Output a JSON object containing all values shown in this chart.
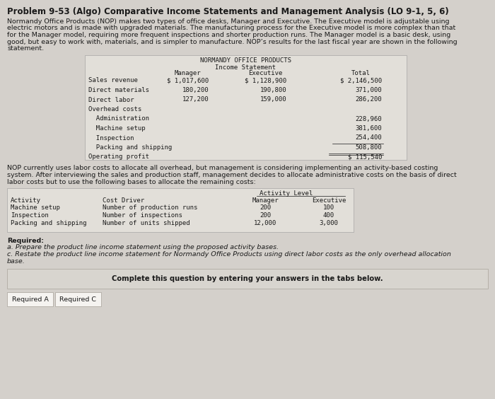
{
  "title": "Problem 9-53 (Algo) Comparative Income Statements and Management Analysis (LO 9-1, 5, 6)",
  "intro_lines": [
    "Normandy Office Products (NOP) makes two types of office desks, Manager and Executive. The Executive model is adjustable using",
    "electric motors and is made with upgraded materials. The manufacturing process for the Executive model is more complex than that",
    "for the Manager model, requiring more frequent inspections and shorter production runs. The Manager model is a basic desk, using",
    "good, but easy to work with, materials, and is simpler to manufacture. NOP’s results for the last fiscal year are shown in the following",
    "statement."
  ],
  "table1_title1": "NORMANDY OFFICE PRODUCTS",
  "table1_title2": "Income Statement",
  "table1_col_headers": [
    "Manager",
    "Executive",
    "Total"
  ],
  "table1_rows": [
    [
      "Sales revenue",
      "$ 1,017,600",
      "$ 1,128,900",
      "$ 2,146,500"
    ],
    [
      "Direct materials",
      "180,200",
      "190,800",
      "371,000"
    ],
    [
      "Direct labor",
      "127,200",
      "159,000",
      "286,200"
    ],
    [
      "Overhead costs",
      "",
      "",
      ""
    ],
    [
      "  Administration",
      "",
      "",
      "228,960"
    ],
    [
      "  Machine setup",
      "",
      "",
      "381,600"
    ],
    [
      "  Inspection",
      "",
      "",
      "254,400"
    ],
    [
      "  Packing and shipping",
      "",
      "",
      "508,800"
    ],
    [
      "Operating profit",
      "",
      "",
      "$ 115,540"
    ]
  ],
  "middle_lines": [
    "NOP currently uses labor costs to allocate all overhead, but management is considering implementing an activity-based costing",
    "system. After interviewing the sales and production staff, management decides to allocate administrative costs on the basis of direct",
    "labor costs but to use the following bases to allocate the remaining costs:"
  ],
  "table2_act_level": "Activity Level",
  "table2_col1": "Activity",
  "table2_col2": "Cost Driver",
  "table2_col3": "Manager",
  "table2_col4": "Executive",
  "table2_rows": [
    [
      "Machine setup",
      "Number of production runs",
      "200",
      "100"
    ],
    [
      "Inspection",
      "Number of inspections",
      "200",
      "400"
    ],
    [
      "Packing and shipping",
      "Number of units shipped",
      "12,000",
      "3,000"
    ]
  ],
  "req_label": "Required:",
  "req_a": "a. Prepare the product line income statement using the proposed activity bases.",
  "req_c1": "c. Restate the product line income statement for Normandy Office Products using direct labor costs as the only overhead allocation",
  "req_c2": "base.",
  "complete_text": "Complete this question by entering your answers in the tabs below.",
  "tab1": "Required A",
  "tab2": "Required C",
  "bg_color": "#d4d0cb",
  "table_bg": "#e2dfd9",
  "complete_bg": "#d8d5cf",
  "complete_border": "#b0aba3",
  "tab_bg": "#f5f3f0",
  "tab_border": "#b0aba3",
  "text_color": "#1a1a1a",
  "fs_title": 8.5,
  "fs_body": 6.8,
  "fs_mono": 6.5,
  "fs_complete": 7.2
}
